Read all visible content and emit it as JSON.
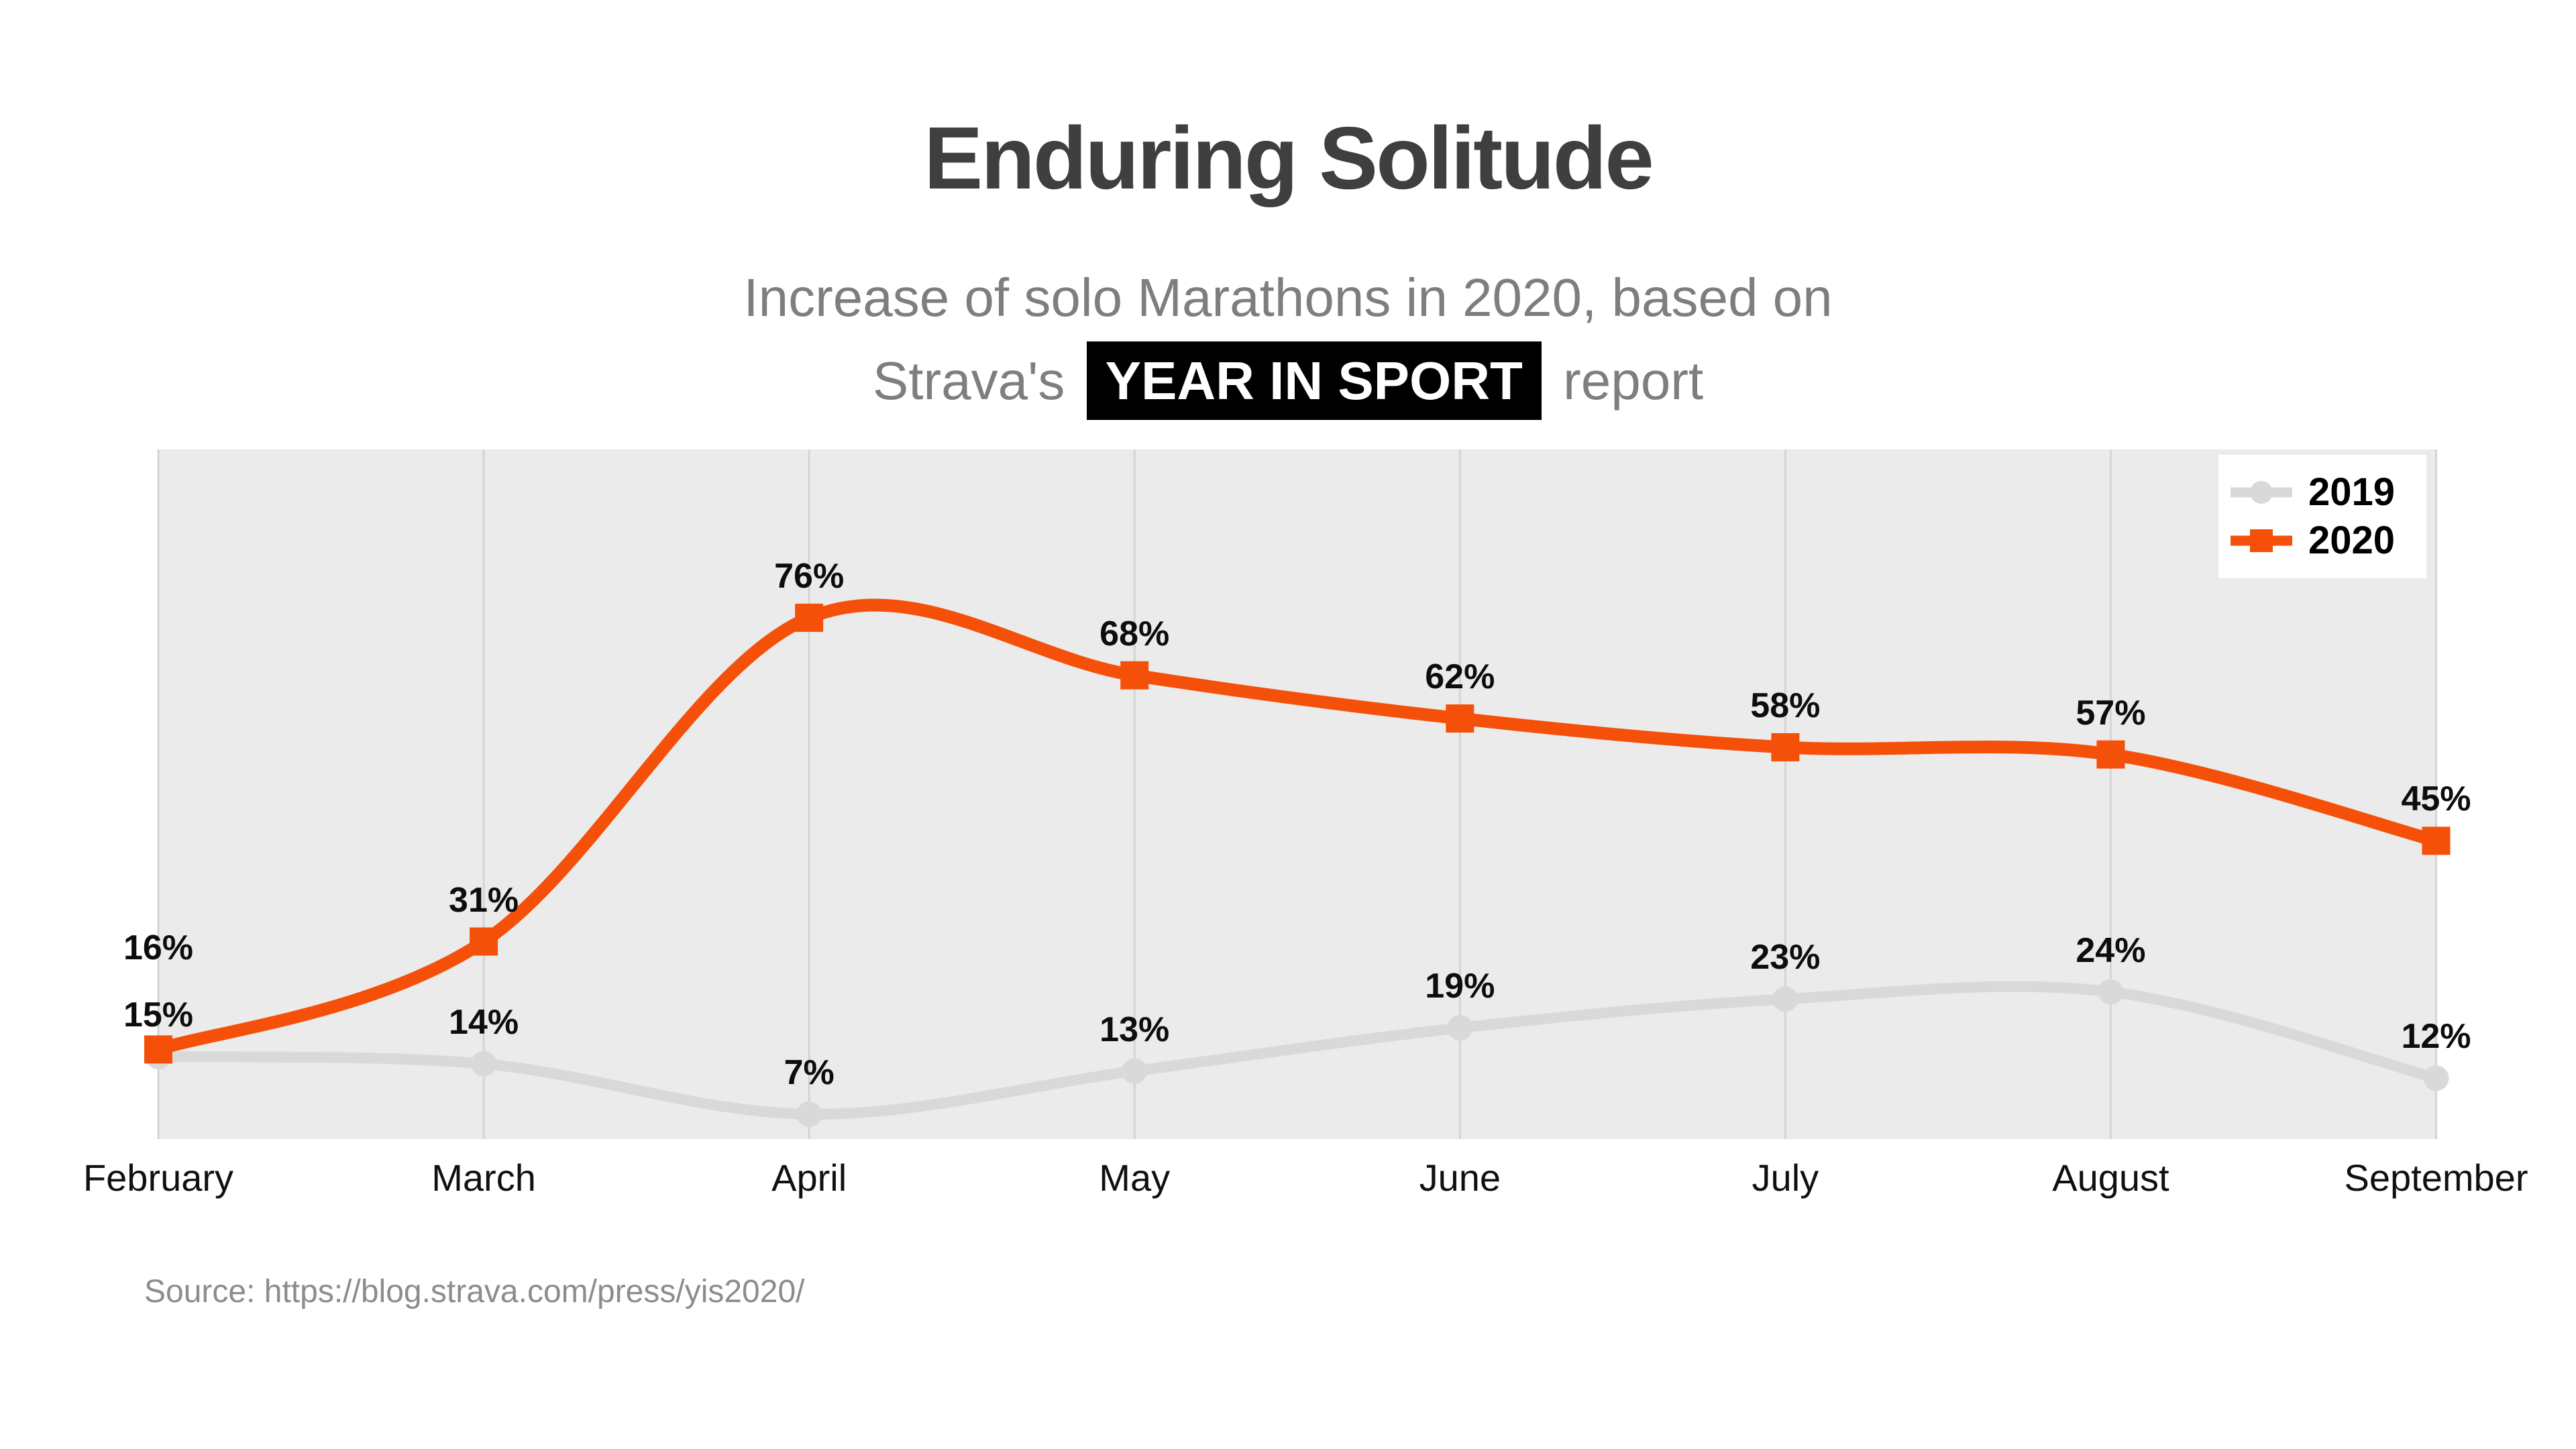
{
  "header": {
    "title": "Enduring Solitude",
    "subtitle_line1": "Increase of solo Marathons in 2020, based on",
    "subtitle_line2_prefix": "Strava's",
    "subtitle_badge": "YEAR IN SPORT",
    "subtitle_line2_suffix": "report"
  },
  "source": {
    "text": "Source: https://blog.strava.com/press/yis2020/"
  },
  "colors": {
    "accent_2020": "#f5500a",
    "series_2019": "#d9d9d9",
    "plot_background": "#ebebeb",
    "gridline": "#d4d4d4",
    "title_text": "#3f3f3f",
    "subtitle_text": "#7e7e7e",
    "badge_background": "#000000",
    "badge_text": "#ffffff",
    "label_text": "#0d0d0d",
    "source_text": "#8c8c8c"
  },
  "chart_data": {
    "type": "line",
    "title": "Enduring Solitude",
    "subtitle": "Increase of solo Marathons in 2020, based on Strava's YEAR IN SPORT report",
    "categories": [
      "February",
      "March",
      "April",
      "May",
      "June",
      "July",
      "August",
      "September"
    ],
    "series": [
      {
        "name": "2019",
        "color": "#d9d9d9",
        "marker": "circle",
        "values": [
          15,
          14,
          7,
          13,
          19,
          23,
          24,
          12
        ]
      },
      {
        "name": "2020",
        "color": "#f5500a",
        "marker": "square",
        "values": [
          16,
          31,
          76,
          68,
          62,
          58,
          57,
          45
        ]
      }
    ],
    "value_suffix": "%",
    "data_labels": true,
    "xlabel": "",
    "ylabel": "",
    "ylim": [
      0,
      100
    ],
    "grid": "vertical-only",
    "legend_position": "top-right",
    "source": "Source: https://blog.strava.com/press/yis2020/"
  }
}
